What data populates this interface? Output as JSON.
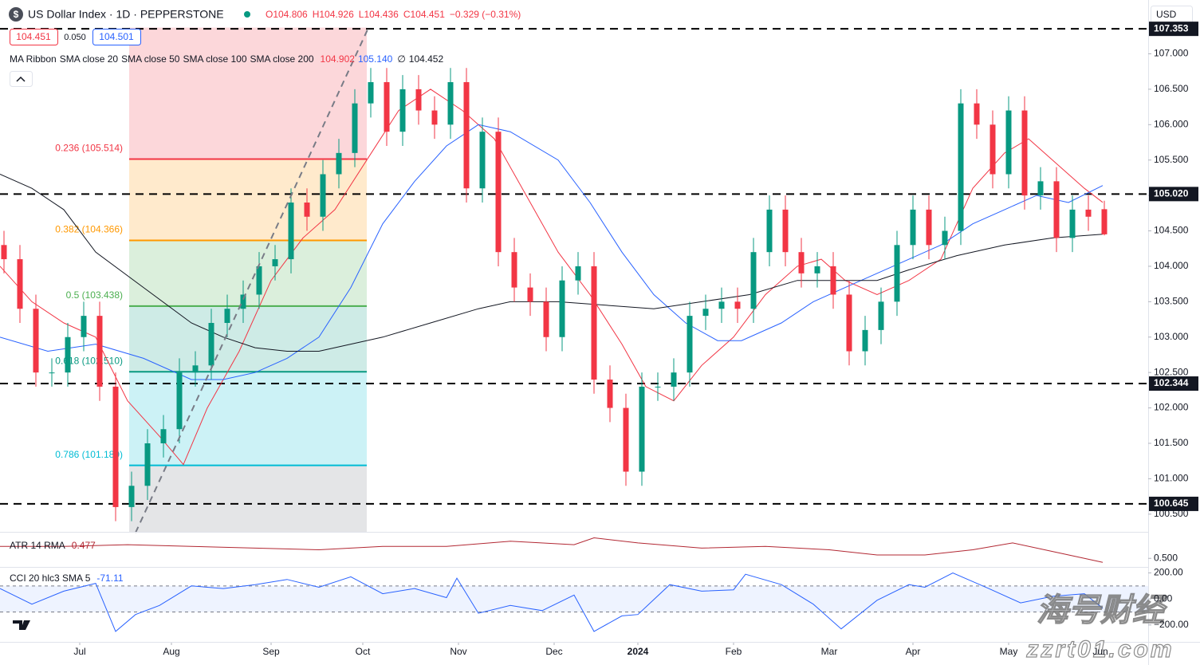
{
  "header": {
    "symbol_icon": "$",
    "title": "US Dollar Index · 1D · PEPPERSTONE",
    "ohlc": [
      "O104.806",
      "H104.926",
      "L104.436",
      "C104.451",
      "−0.329 (−0.31%)"
    ],
    "bid": "104.451",
    "spread": "0.050",
    "ask": "104.501",
    "currency": "USD"
  },
  "watermark": {
    "brand": "海号财经",
    "url": "zzrt01.com"
  },
  "chart_data": [
    {
      "type": "candlestick",
      "legend_title": "MA Ribbon",
      "up_color": "#089981",
      "down_color": "#f23645",
      "x": [
        1,
        5,
        9,
        13,
        17,
        21,
        25,
        29,
        33,
        37,
        41,
        45,
        49,
        53,
        57,
        61,
        65,
        69,
        73,
        77,
        81,
        85,
        89,
        93,
        97,
        101,
        105,
        109,
        113,
        117,
        121,
        125,
        129,
        133,
        137,
        141,
        145,
        149,
        153,
        157,
        161,
        165,
        169,
        173,
        177,
        181,
        185,
        189,
        193,
        197,
        201,
        205,
        209,
        213,
        217,
        221,
        225,
        229,
        233,
        237,
        241,
        245,
        249,
        253,
        257,
        261,
        265,
        269,
        273,
        277
      ],
      "open": [
        104.3,
        104.1,
        103.4,
        102.5,
        102.5,
        103.0,
        103.3,
        102.3,
        100.6,
        100.9,
        101.5,
        101.7,
        102.5,
        102.6,
        103.2,
        103.4,
        103.6,
        104.0,
        104.1,
        104.9,
        104.7,
        105.3,
        105.6,
        106.3,
        106.6,
        105.9,
        106.5,
        106.2,
        106.0,
        106.6,
        105.1,
        105.9,
        104.2,
        103.7,
        103.5,
        103.0,
        103.8,
        104.0,
        102.4,
        102.0,
        101.1,
        102.3,
        102.3,
        102.5,
        103.3,
        103.4,
        103.5,
        103.4,
        104.2,
        104.8,
        104.2,
        103.9,
        104.0,
        103.6,
        102.8,
        103.1,
        103.5,
        104.3,
        104.8,
        104.3,
        104.5,
        106.3,
        106.0,
        105.3,
        106.2,
        105.0,
        105.2,
        104.4,
        104.8,
        104.806
      ],
      "high": [
        104.5,
        104.3,
        103.6,
        102.7,
        103.2,
        103.5,
        103.5,
        102.5,
        101.1,
        101.7,
        101.9,
        102.7,
        102.8,
        103.4,
        103.6,
        103.8,
        104.2,
        104.3,
        105.1,
        105.1,
        105.5,
        105.8,
        106.5,
        106.8,
        106.8,
        106.7,
        106.7,
        106.4,
        106.8,
        106.8,
        106.1,
        106.1,
        104.4,
        103.9,
        103.7,
        104.0,
        104.2,
        104.2,
        102.6,
        102.2,
        102.5,
        102.5,
        102.7,
        103.5,
        103.6,
        103.7,
        103.7,
        104.4,
        105.0,
        105.0,
        104.4,
        104.2,
        104.2,
        103.8,
        103.3,
        103.7,
        104.5,
        105.0,
        105.0,
        104.7,
        106.5,
        106.5,
        106.2,
        106.4,
        106.4,
        105.4,
        105.4,
        105.0,
        105.0,
        104.926
      ],
      "low": [
        103.9,
        103.2,
        102.3,
        102.3,
        102.3,
        102.8,
        102.1,
        100.4,
        100.4,
        100.7,
        101.3,
        101.5,
        102.3,
        102.4,
        103.0,
        103.2,
        103.4,
        103.8,
        103.9,
        104.5,
        104.5,
        105.1,
        105.4,
        106.1,
        105.7,
        105.7,
        106.0,
        105.8,
        105.8,
        104.9,
        104.9,
        104.0,
        103.5,
        103.3,
        102.8,
        102.8,
        103.6,
        102.2,
        101.8,
        100.9,
        100.9,
        102.1,
        102.1,
        102.3,
        103.1,
        103.2,
        103.2,
        103.2,
        104.0,
        104.0,
        103.7,
        103.7,
        103.4,
        102.6,
        102.6,
        102.9,
        103.3,
        104.1,
        104.1,
        104.1,
        104.3,
        105.8,
        105.1,
        105.1,
        104.8,
        104.8,
        104.2,
        104.2,
        104.5,
        104.436
      ],
      "close": [
        104.1,
        103.4,
        102.5,
        102.5,
        103.0,
        103.3,
        102.3,
        100.6,
        100.9,
        101.5,
        101.7,
        102.5,
        102.6,
        103.2,
        103.4,
        103.6,
        104.0,
        104.1,
        104.9,
        104.7,
        105.3,
        105.6,
        106.3,
        106.6,
        105.9,
        106.5,
        106.2,
        106.0,
        106.6,
        105.1,
        105.9,
        104.2,
        103.7,
        103.5,
        103.0,
        103.8,
        104.0,
        102.4,
        102.0,
        101.1,
        102.3,
        102.3,
        102.5,
        103.3,
        103.4,
        103.5,
        103.4,
        104.2,
        104.8,
        104.2,
        103.9,
        104.0,
        103.6,
        102.8,
        103.1,
        103.5,
        104.3,
        104.8,
        104.3,
        104.5,
        106.3,
        106.0,
        105.3,
        106.2,
        105.0,
        105.2,
        104.4,
        104.8,
        104.7,
        104.451
      ],
      "series": [
        {
          "name": "SMA close 20",
          "color": "#f23645",
          "value_label": "104.902",
          "x": [
            0,
            8,
            16,
            24,
            32,
            40,
            46,
            52,
            60,
            68,
            76,
            84,
            92,
            100,
            108,
            116,
            124,
            132,
            140,
            148,
            156,
            162,
            169,
            176,
            184,
            192,
            200,
            206,
            212,
            220,
            228,
            236,
            244,
            252,
            258,
            266,
            272,
            276.6
          ],
          "values": [
            104.0,
            103.5,
            103.2,
            103.0,
            102.1,
            101.6,
            101.2,
            102.0,
            102.8,
            103.8,
            104.4,
            104.8,
            105.5,
            106.2,
            106.5,
            106.2,
            105.8,
            105.0,
            104.2,
            103.6,
            102.9,
            102.3,
            102.1,
            102.6,
            103.0,
            103.6,
            104.0,
            104.1,
            103.8,
            103.6,
            103.8,
            104.1,
            105.1,
            105.6,
            105.8,
            105.4,
            105.1,
            104.902
          ]
        },
        {
          "name": "SMA close 50",
          "color": "#2962ff",
          "value_label": "105.140",
          "x": [
            0,
            12,
            24,
            36,
            48,
            56,
            64,
            72,
            80,
            88,
            96,
            104,
            112,
            120,
            128,
            140,
            148,
            156,
            164,
            172,
            180,
            186,
            196,
            204,
            212,
            220,
            228,
            236,
            244,
            252,
            260,
            268,
            276.6
          ],
          "values": [
            103.0,
            102.8,
            102.9,
            102.7,
            102.4,
            102.4,
            102.5,
            102.7,
            103.0,
            103.7,
            104.6,
            105.2,
            105.7,
            106.0,
            105.9,
            105.5,
            104.9,
            104.2,
            103.6,
            103.2,
            102.95,
            102.95,
            103.2,
            103.5,
            103.7,
            103.9,
            104.1,
            104.3,
            104.6,
            104.8,
            105.0,
            104.9,
            105.14
          ]
        },
        {
          "name": "SMA close 100",
          "color": "#ff9800",
          "value_label": "∅",
          "x": [],
          "values": []
        },
        {
          "name": "SMA close 200",
          "color": "#131722",
          "value_label": "104.452",
          "x": [
            0,
            8,
            16,
            24,
            36,
            48,
            56,
            64,
            72,
            80,
            88,
            96,
            108,
            120,
            128,
            140,
            152,
            164,
            176,
            188,
            200,
            212,
            220,
            228,
            240,
            252,
            264,
            276.6
          ],
          "values": [
            105.3,
            105.1,
            104.8,
            104.2,
            103.7,
            103.2,
            103.0,
            102.85,
            102.8,
            102.8,
            102.9,
            103.0,
            103.2,
            103.4,
            103.5,
            103.5,
            103.45,
            103.4,
            103.5,
            103.6,
            103.8,
            103.8,
            103.8,
            103.95,
            104.15,
            104.3,
            104.4,
            104.452
          ]
        }
      ],
      "levels": [
        107.353,
        {
          "value": 105.02,
          "label": "105.020"
        },
        102.344,
        100.645
      ],
      "fib": {
        "high": 107.37,
        "low": 99.507,
        "x": [
          32.4,
          92
        ],
        "zone_colors": [
          "rgba(242,54,69,0.2)",
          "rgba(255,152,0,0.2)",
          "rgba(76,175,80,0.2)",
          "rgba(8,153,129,0.2)",
          "rgba(0,188,212,0.2)",
          "rgba(120,123,134,0.2)"
        ],
        "levels": [
          {
            "value": 105.514,
            "label": "0.236 (105.514)",
            "color": "#f23645"
          },
          {
            "value": 104.366,
            "label": "0.382 (104.366)",
            "color": "#ff9800"
          },
          {
            "value": 103.438,
            "label": "0.5 (103.438)",
            "color": "#4caf50"
          },
          {
            "value": 102.51,
            "label": "0.618 (102.510)",
            "color": "#089981"
          },
          {
            "value": 101.189,
            "label": "0.786 (101.189)",
            "color": "#00bcd4"
          }
        ]
      },
      "xlim": [
        0,
        288
      ],
      "ylim": [
        100.25,
        107.76
      ],
      "yticks": [
        {
          "value": 100.5,
          "label": "100.500"
        },
        {
          "value": 101,
          "label": "101.000"
        },
        {
          "value": 101.5,
          "label": "101.500"
        },
        {
          "value": 102,
          "label": "102.000"
        },
        {
          "value": 102.5,
          "label": "102.500"
        },
        {
          "value": 103,
          "label": "103.000"
        },
        {
          "value": 103.5,
          "label": "103.500"
        },
        {
          "value": 104,
          "label": "104.000"
        },
        {
          "value": 104.5,
          "label": "104.500"
        },
        {
          "value": 105,
          "label": "105.000"
        },
        {
          "value": 105.5,
          "label": "105.500"
        },
        {
          "value": 106,
          "label": "106.000"
        },
        {
          "value": 106.5,
          "label": "106.500"
        },
        {
          "value": 107,
          "label": "107.000"
        }
      ],
      "xticks": [
        {
          "value": 20,
          "label": "Jul"
        },
        {
          "value": 43,
          "label": "Aug"
        },
        {
          "value": 68,
          "label": "Sep"
        },
        {
          "value": 91,
          "label": "Oct"
        },
        {
          "value": 115,
          "label": "Nov"
        },
        {
          "value": 139,
          "label": "Dec"
        },
        {
          "value": 160,
          "label": "2024"
        },
        {
          "value": 184,
          "label": "Feb"
        },
        {
          "value": 208,
          "label": "Mar"
        },
        {
          "value": 229,
          "label": "Apr"
        },
        {
          "value": 253,
          "label": "May"
        },
        {
          "value": 276,
          "label": "Jun"
        }
      ]
    },
    {
      "type": "line",
      "title": "ATR 14 RMA",
      "color": "#b22833",
      "x": [
        0,
        16,
        32,
        48,
        64,
        80,
        96,
        112,
        128,
        144,
        149,
        160,
        176,
        192,
        208,
        220,
        232,
        244,
        254,
        264,
        272,
        276.6
      ],
      "values": [
        0.57,
        0.57,
        0.58,
        0.57,
        0.56,
        0.55,
        0.57,
        0.57,
        0.6,
        0.58,
        0.62,
        0.59,
        0.56,
        0.57,
        0.55,
        0.52,
        0.52,
        0.55,
        0.59,
        0.54,
        0.5,
        0.477
      ],
      "ylim": [
        0.45,
        0.65
      ],
      "yticks": [
        {
          "value": 0.5,
          "label": "0.500"
        }
      ]
    },
    {
      "type": "line",
      "title": "CCI 20 hlc3 SMA 5",
      "color": "#2962ff",
      "x": [
        0,
        8,
        16,
        24,
        29,
        34,
        40,
        48,
        56,
        64,
        72,
        80,
        88,
        96,
        104,
        112,
        114.6,
        120,
        128,
        136,
        144,
        149,
        156,
        160,
        168,
        176,
        184,
        187,
        196,
        204,
        211,
        220,
        228,
        232,
        239,
        248,
        256,
        264,
        272,
        276.6
      ],
      "values": [
        80,
        -40,
        60,
        120,
        -250,
        -120,
        -50,
        100,
        80,
        110,
        150,
        90,
        170,
        40,
        80,
        10,
        160,
        -110,
        -50,
        -90,
        30,
        -250,
        -130,
        -120,
        110,
        60,
        70,
        190,
        110,
        -40,
        -230,
        -10,
        110,
        90,
        200,
        80,
        -30,
        20,
        40,
        -71.11
      ],
      "band": [
        -100,
        100
      ],
      "ylim": [
        -330,
        240
      ],
      "yticks": [
        {
          "value": 200,
          "label": "200.00"
        },
        {
          "value": 0,
          "label": "0.00"
        },
        {
          "value": -200,
          "label": "−200.00"
        }
      ]
    }
  ]
}
